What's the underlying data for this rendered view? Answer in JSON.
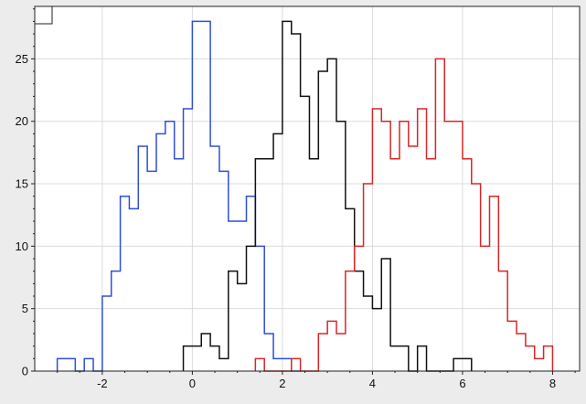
{
  "chart_data": {
    "type": "histogram",
    "title": "",
    "xlabel": "",
    "ylabel": "",
    "xlim": [
      -3.5,
      8.6
    ],
    "ylim": [
      0,
      29.2
    ],
    "grid": true,
    "x_ticks": [
      -2,
      0,
      2,
      4,
      6,
      8
    ],
    "x_tick_labels": [
      "-2",
      "0",
      "2",
      "4",
      "6",
      "8"
    ],
    "y_ticks": [
      0,
      5,
      10,
      15,
      20,
      25
    ],
    "y_tick_labels": [
      "0",
      "5",
      "10",
      "15",
      "20",
      "25"
    ],
    "series": [
      {
        "color": "#2f4fd6",
        "edges": [
          -3.0,
          -2.8,
          -2.6,
          -2.4,
          -2.2,
          -2.0,
          -1.8,
          -1.6,
          -1.4,
          -1.2,
          -1.0,
          -0.8,
          -0.6,
          -0.4,
          -0.2,
          0.0,
          0.2,
          0.4,
          0.6,
          0.8,
          1.0,
          1.2,
          1.4,
          1.6,
          1.8,
          2.0,
          2.2,
          2.4
        ],
        "counts": [
          1,
          1,
          0,
          1,
          0,
          6,
          8,
          14,
          13,
          18,
          16,
          19,
          20,
          17,
          21,
          28,
          28,
          18,
          16,
          12,
          12,
          14,
          10,
          3,
          1,
          1,
          0
        ]
      },
      {
        "color": "#111111",
        "edges": [
          -0.2,
          0.0,
          0.2,
          0.4,
          0.6,
          0.8,
          1.0,
          1.2,
          1.4,
          1.6,
          1.8,
          2.0,
          2.2,
          2.4,
          2.6,
          2.8,
          3.0,
          3.2,
          3.4,
          3.6,
          3.8,
          4.0,
          4.2,
          4.4,
          4.6,
          4.8,
          5.0,
          5.2,
          5.4,
          5.6,
          5.8,
          6.0,
          6.2
        ],
        "counts": [
          2,
          2,
          3,
          2,
          1,
          8,
          7,
          10,
          17,
          17,
          19,
          28,
          27,
          22,
          17,
          24,
          25,
          20,
          13,
          8,
          6,
          5,
          9,
          2,
          2,
          0,
          2,
          0,
          0,
          0,
          1,
          1
        ]
      },
      {
        "color": "#d62728",
        "edges": [
          1.4,
          1.6,
          1.8,
          2.0,
          2.2,
          2.4,
          2.6,
          2.8,
          3.0,
          3.2,
          3.4,
          3.6,
          3.8,
          4.0,
          4.2,
          4.4,
          4.6,
          4.8,
          5.0,
          5.2,
          5.4,
          5.6,
          5.8,
          6.0,
          6.2,
          6.4,
          6.6,
          6.8,
          7.0,
          7.2,
          7.4,
          7.6,
          7.8,
          8.0
        ],
        "counts": [
          1,
          0,
          0,
          0,
          1,
          0,
          0,
          3,
          4,
          3,
          8,
          10,
          15,
          21,
          20,
          17,
          20,
          18,
          21,
          17,
          25,
          20,
          20,
          17,
          15,
          10,
          14,
          8,
          4,
          3,
          2,
          1,
          2
        ]
      }
    ]
  }
}
